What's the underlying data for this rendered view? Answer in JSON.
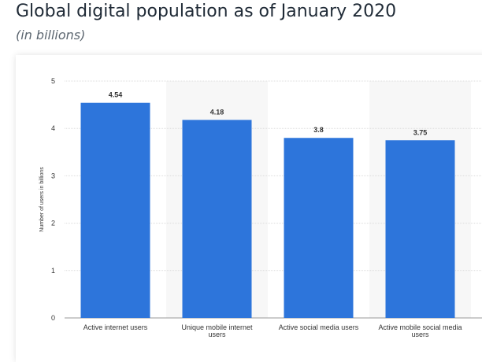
{
  "title": "Global digital population as of January 2020",
  "subtitle": "(in billions)",
  "chart_data": {
    "type": "bar",
    "categories": [
      [
        "Active internet users"
      ],
      [
        "Unique mobile internet",
        "users"
      ],
      [
        "Active social media users"
      ],
      [
        "Active mobile social media",
        "users"
      ]
    ],
    "values": [
      4.54,
      4.18,
      3.8,
      3.75
    ],
    "data_labels": [
      "4.54",
      "4.18",
      "3.8",
      "3.75"
    ],
    "ylabel": "Number of users in billions",
    "xlabel": "",
    "ylim": [
      0,
      5
    ],
    "yticks": [
      0,
      1,
      2,
      3,
      4,
      5
    ],
    "grid": true,
    "bar_color": "#2d75db"
  }
}
